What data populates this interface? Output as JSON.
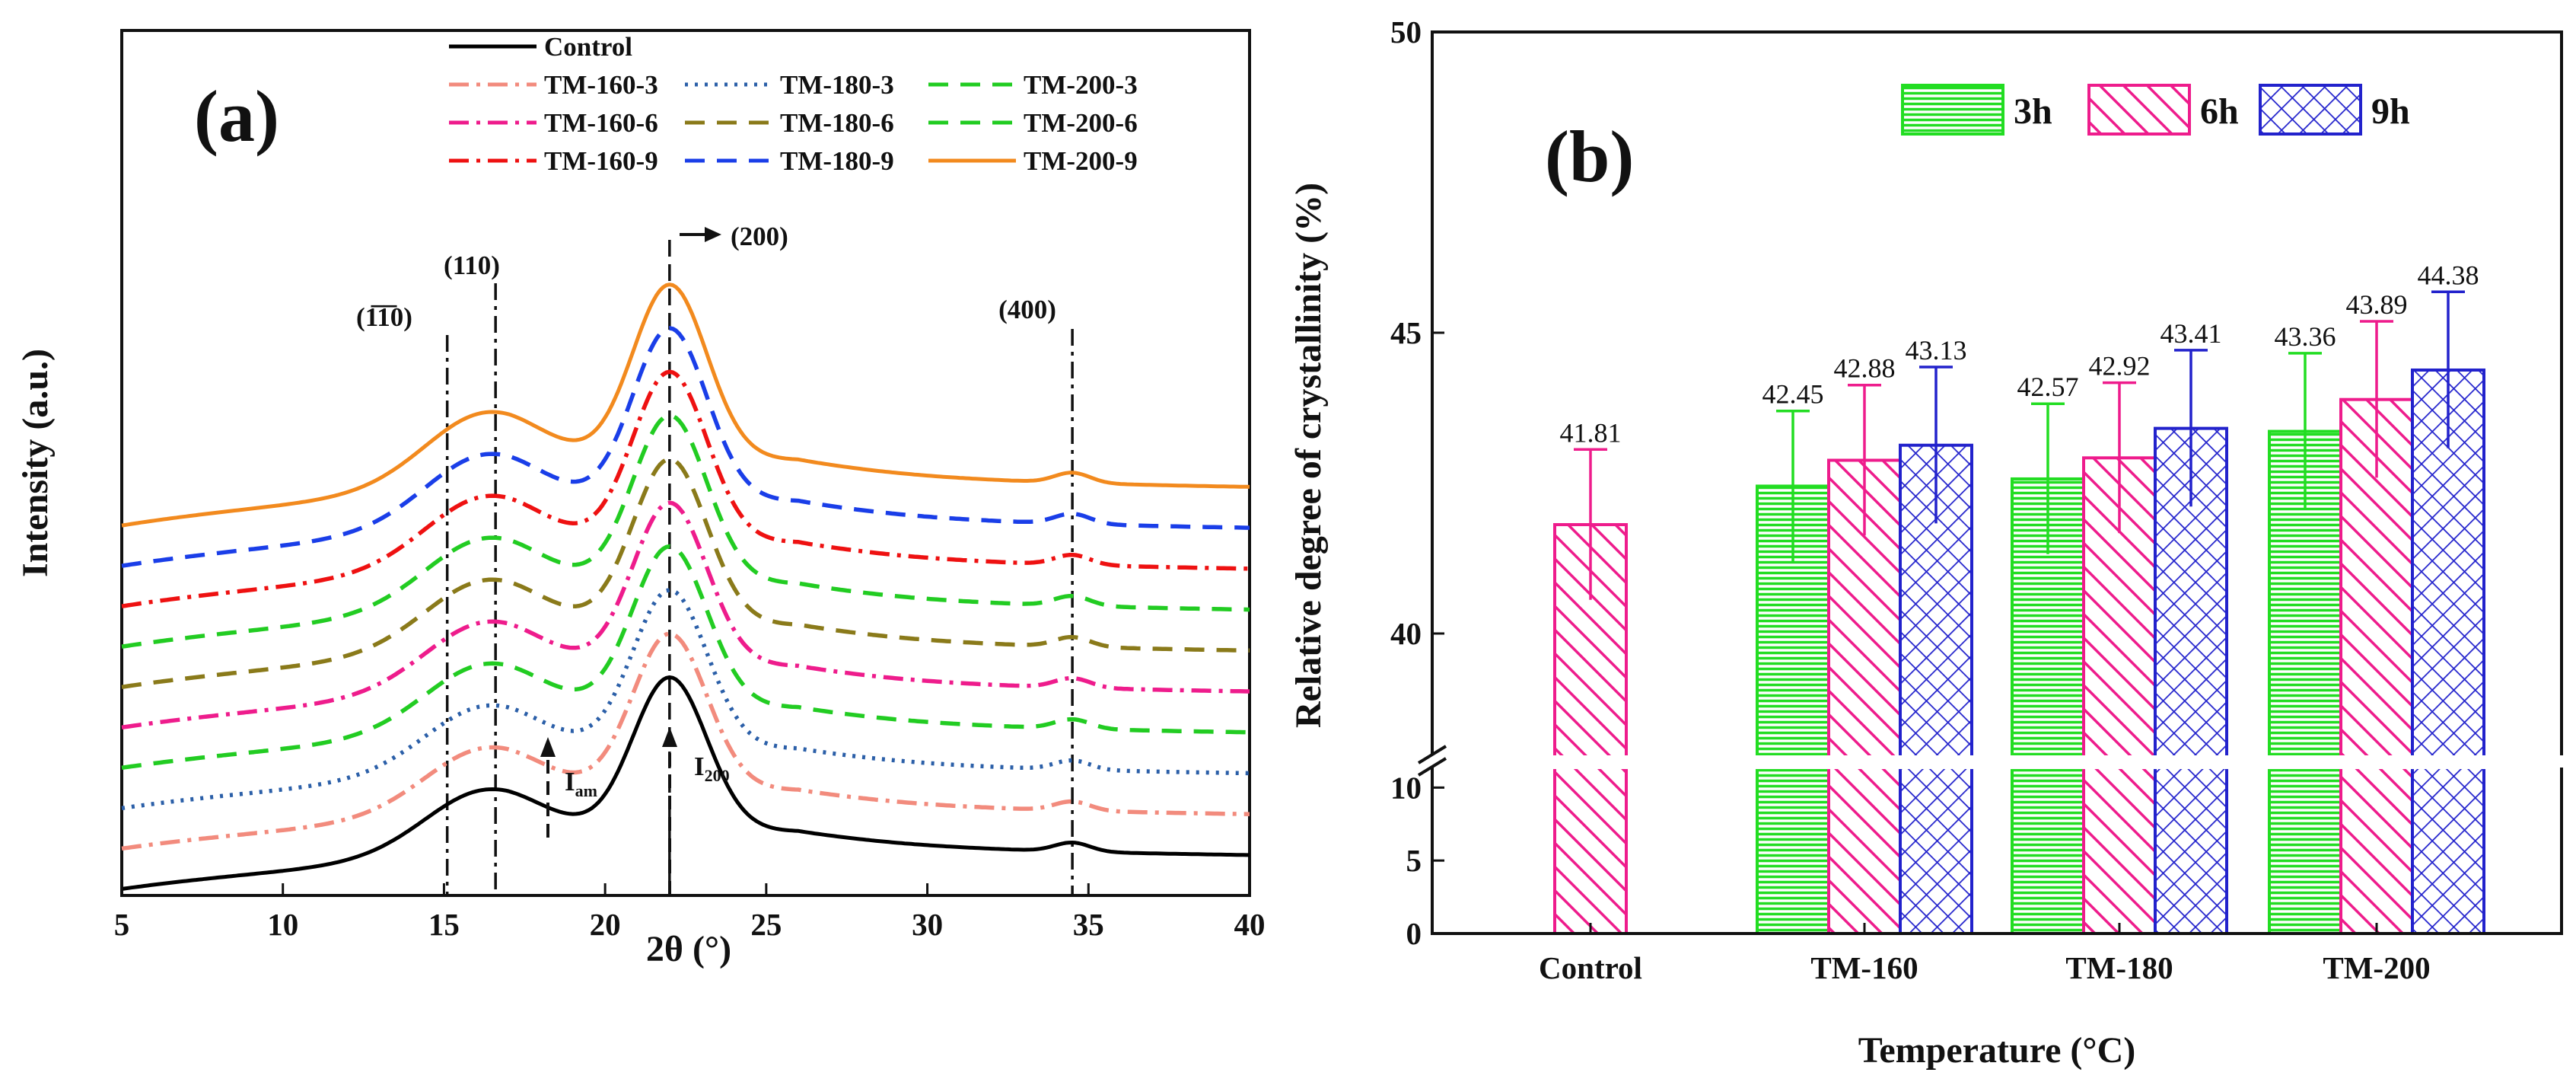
{
  "chart_data": [
    {
      "id": "a",
      "type": "line",
      "panel_label": "(a)",
      "xlabel": "2θ  (°)",
      "ylabel": "Intensity (a.u.)",
      "xlim": [
        5,
        40
      ],
      "x_ticks": [
        5,
        10,
        15,
        20,
        25,
        30,
        35,
        40
      ],
      "series": [
        {
          "name": "Control",
          "color": "#000000",
          "dash": "solid",
          "offset": 0
        },
        {
          "name": "TM-160-3",
          "color": "#f28b7d",
          "dash": "dashdot",
          "offset": 1
        },
        {
          "name": "TM-180-3",
          "color": "#2b5fa8",
          "dash": "dotted",
          "offset": 2
        },
        {
          "name": "TM-200-3",
          "color": "#22cc22",
          "dash": "dashed",
          "offset": 3
        },
        {
          "name": "TM-160-6",
          "color": "#ee1c8c",
          "dash": "dashdot",
          "offset": 4
        },
        {
          "name": "TM-180-6",
          "color": "#8a7a1a",
          "dash": "dashed",
          "offset": 5
        },
        {
          "name": "TM-200-6",
          "color": "#22cc22",
          "dash": "dashed",
          "offset": 6
        },
        {
          "name": "TM-160-9",
          "color": "#ee1111",
          "dash": "dashdot",
          "offset": 7
        },
        {
          "name": "TM-180-9",
          "color": "#1a3ee8",
          "dash": "dashed",
          "offset": 8
        },
        {
          "name": "TM-200-9",
          "color": "#f28a1e",
          "dash": "solid",
          "offset": 9
        }
      ],
      "reference_lines": [
        {
          "x": 15.1,
          "label": "(1̅1̅0)"
        },
        {
          "x": 16.6,
          "label": "(110)"
        },
        {
          "x": 22.0,
          "label": "(200)"
        },
        {
          "x": 34.5,
          "label": "(400)"
        }
      ],
      "annotations": {
        "i_am": "I",
        "i_am_sub": "am",
        "i_200": "I",
        "i_200_sub": "200"
      },
      "legend_order": [
        [
          "Control"
        ],
        [
          "TM-160-3",
          "TM-180-3",
          "TM-200-3"
        ],
        [
          "TM-160-6",
          "TM-180-6",
          "TM-200-6"
        ],
        [
          "TM-160-9",
          "TM-180-9",
          "TM-200-9"
        ]
      ]
    },
    {
      "id": "b",
      "type": "bar",
      "panel_label": "(b)",
      "xlabel": "Temperature (°C)",
      "ylabel": "Relative degree of crystallinity (%)",
      "categories": [
        "Control",
        "TM-160",
        "TM-180",
        "TM-200"
      ],
      "series": [
        {
          "name": "3h",
          "color": "#22dd22",
          "pattern": "horizontal",
          "values": [
            null,
            42.45,
            42.57,
            43.36
          ],
          "errors": [
            null,
            1.25,
            1.25,
            1.3
          ]
        },
        {
          "name": "6h",
          "color": "#ee1c8c",
          "pattern": "diagonal",
          "values": [
            41.81,
            42.88,
            42.92,
            43.89
          ],
          "errors": [
            1.25,
            1.25,
            1.25,
            1.3
          ]
        },
        {
          "name": "9h",
          "color": "#2222cc",
          "pattern": "crosshatch",
          "values": [
            null,
            43.13,
            43.41,
            44.38
          ],
          "errors": [
            null,
            1.3,
            1.3,
            1.3
          ]
        }
      ],
      "value_labels": {
        "Control": [
          "41.81"
        ],
        "TM-160": [
          "42.45",
          "42.88",
          "43.13"
        ],
        "TM-180": [
          "42.57",
          "42.92",
          "43.41"
        ],
        "TM-200": [
          "43.36",
          "43.89",
          "44.38"
        ]
      },
      "ylim_upper": [
        38,
        50
      ],
      "ylim_lower": [
        0,
        12
      ],
      "y_ticks_upper": [
        40,
        45,
        50
      ],
      "y_ticks_lower": [
        0,
        5,
        10
      ],
      "axis_break": true,
      "legend_position": "top-right"
    }
  ]
}
